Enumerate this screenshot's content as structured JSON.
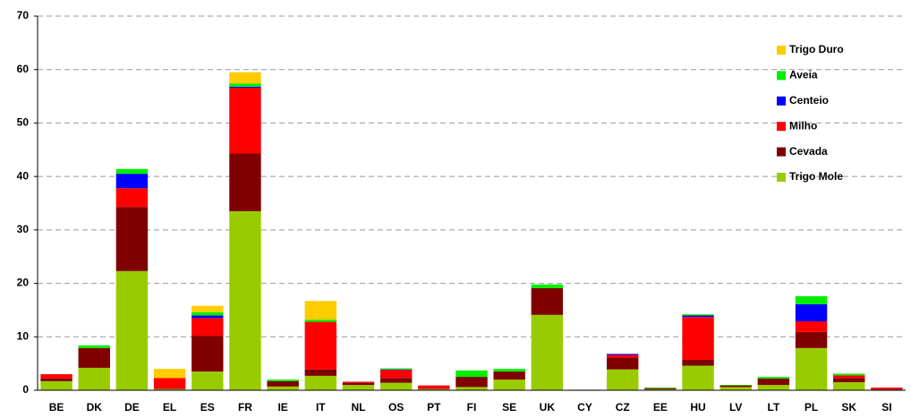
{
  "chart_data": {
    "type": "stacked-bar",
    "categories": [
      "BE",
      "DK",
      "DE",
      "EL",
      "ES",
      "FR",
      "IE",
      "IT",
      "NL",
      "OS",
      "PT",
      "FI",
      "SE",
      "UK",
      "CY",
      "CZ",
      "EE",
      "HU",
      "LV",
      "LT",
      "PL",
      "SK",
      "SI"
    ],
    "series": [
      {
        "name": "Trigo Mole",
        "color": "#99cc00",
        "values": [
          1.7,
          4.2,
          22.3,
          0.2,
          3.5,
          33.5,
          0.7,
          2.7,
          1.0,
          1.4,
          0.2,
          0.6,
          2.0,
          14.1,
          0,
          3.9,
          0.2,
          4.6,
          0.6,
          1.0,
          7.9,
          1.5,
          0.1
        ]
      },
      {
        "name": "Cevada",
        "color": "#800000",
        "values": [
          0.5,
          3.7,
          12.0,
          0.1,
          6.7,
          10.8,
          1.0,
          1.2,
          0.4,
          0.9,
          0.1,
          1.9,
          1.5,
          5.0,
          0.1,
          2.2,
          0.2,
          1.1,
          0.3,
          1.2,
          3.0,
          0.8,
          0.1
        ]
      },
      {
        "name": "Milho",
        "color": "#ff0000",
        "values": [
          0.8,
          0,
          3.5,
          2.0,
          3.3,
          12.3,
          0,
          8.9,
          0.2,
          1.5,
          0.6,
          0,
          0,
          0,
          0,
          0.5,
          0,
          8.0,
          0,
          0,
          2.0,
          0.5,
          0.3
        ]
      },
      {
        "name": "Centeio",
        "color": "#0000ff",
        "values": [
          0,
          0,
          2.7,
          0,
          0.5,
          0.2,
          0,
          0,
          0,
          0.1,
          0,
          0,
          0,
          0,
          0,
          0.2,
          0,
          0.3,
          0,
          0,
          3.2,
          0,
          0
        ]
      },
      {
        "name": "Aveia",
        "color": "#00ee00",
        "values": [
          0,
          0.5,
          0.9,
          0,
          0.6,
          0.6,
          0.3,
          0.4,
          0,
          0.2,
          0,
          1.2,
          0.5,
          0.7,
          0,
          0,
          0.1,
          0.2,
          0.1,
          0.3,
          1.5,
          0.3,
          0
        ]
      },
      {
        "name": "Trigo Duro",
        "color": "#ffcc00",
        "values": [
          0,
          0,
          0,
          1.7,
          1.2,
          2.1,
          0,
          3.5,
          0,
          0,
          0,
          0,
          0,
          0,
          0,
          0,
          0,
          0,
          0,
          0,
          0,
          0,
          0
        ]
      }
    ],
    "ylim": [
      0,
      70
    ],
    "yticks": [
      0,
      10,
      20,
      30,
      40,
      50,
      60,
      70
    ],
    "grid": true,
    "legend": "top-right"
  }
}
